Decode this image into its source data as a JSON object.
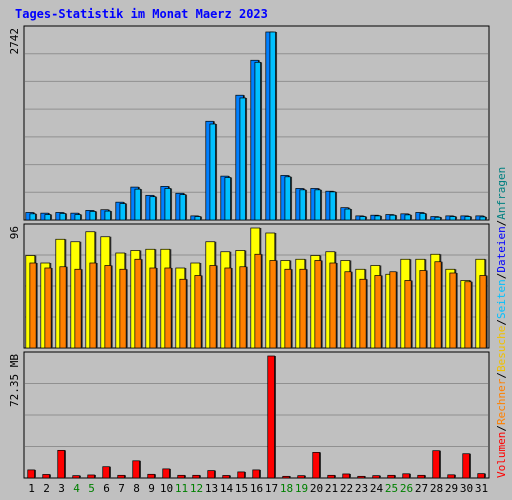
{
  "title": "Tages-Statistik im Monat Maerz 2023",
  "legend": [
    {
      "text": "Anfragen",
      "color": "#008080"
    },
    {
      "text": "Dateien",
      "color": "#0000ff"
    },
    {
      "text": "Seiten",
      "color": "#00c0ff"
    },
    {
      "text": "Besuche",
      "color": "#f0c000"
    },
    {
      "text": "Rechner",
      "color": "#ff8000"
    },
    {
      "text": "Volumen",
      "color": "#ff0000"
    }
  ],
  "colors": {
    "anfragen": "#00c0ff",
    "dateien": "#0080ff",
    "besuche": "#ffff00",
    "rechner": "#ff8000",
    "volumen": "#ff0000",
    "weekend_label": "#008000",
    "weekday_label": "#000000"
  },
  "chart_data": {
    "type": "bar",
    "categories": [
      "1",
      "2",
      "3",
      "4",
      "5",
      "6",
      "7",
      "8",
      "9",
      "10",
      "11",
      "12",
      "13",
      "14",
      "15",
      "16",
      "17",
      "18",
      "19",
      "20",
      "21",
      "22",
      "23",
      "24",
      "25",
      "26",
      "27",
      "28",
      "29",
      "30",
      "31"
    ],
    "weekend_days": [
      4,
      5,
      11,
      12,
      18,
      19,
      25,
      26
    ],
    "panels": [
      {
        "name": "requests",
        "max_label": "2742",
        "max": 2742,
        "series": [
          {
            "name": "Anfragen",
            "values": [
              110,
              100,
              110,
              100,
              140,
              150,
              260,
              480,
              360,
              490,
              390,
              60,
              1440,
              640,
              1820,
              2330,
              2742,
              650,
              460,
              460,
              420,
              180,
              60,
              70,
              80,
              90,
              110,
              50,
              60,
              60,
              60
            ]
          },
          {
            "name": "Dateien",
            "values": [
              90,
              80,
              95,
              80,
              125,
              130,
              240,
              450,
              340,
              460,
              370,
              50,
              1400,
              620,
              1780,
              2300,
              2742,
              630,
              440,
              440,
              410,
              160,
              50,
              60,
              70,
              75,
              95,
              40,
              50,
              50,
              45
            ]
          }
        ]
      },
      {
        "name": "visits",
        "max_label": "96",
        "max": 96,
        "series": [
          {
            "name": "Besuche",
            "values": [
              74,
              68,
              87,
              85,
              93,
              89,
              76,
              78,
              79,
              79,
              64,
              68,
              85,
              77,
              78,
              96,
              92,
              70,
              71,
              74,
              77,
              70,
              63,
              66,
              59,
              71,
              71,
              75,
              63,
              54,
              71
            ]
          },
          {
            "name": "Rechner",
            "values": [
              68,
              64,
              65,
              63,
              68,
              66,
              63,
              71,
              64,
              64,
              55,
              58,
              66,
              64,
              65,
              75,
              70,
              63,
              63,
              70,
              68,
              61,
              55,
              58,
              61,
              54,
              62,
              69,
              60,
              53,
              58
            ]
          }
        ]
      },
      {
        "name": "volume",
        "max_label": "72.35 MB",
        "max": 72.35,
        "series": [
          {
            "name": "Volumen",
            "values": [
              4.8,
              2.1,
              16.4,
              1.4,
              1.8,
              6.7,
              1.6,
              10.2,
              2.2,
              5.4,
              1.6,
              1.6,
              4.4,
              1.5,
              3.6,
              4.8,
              72.35,
              1.0,
              1.4,
              15.2,
              1.6,
              2.4,
              1.0,
              1.4,
              1.6,
              2.5,
              1.6,
              16.2,
              1.9,
              14.4,
              2.6
            ]
          }
        ]
      }
    ]
  }
}
